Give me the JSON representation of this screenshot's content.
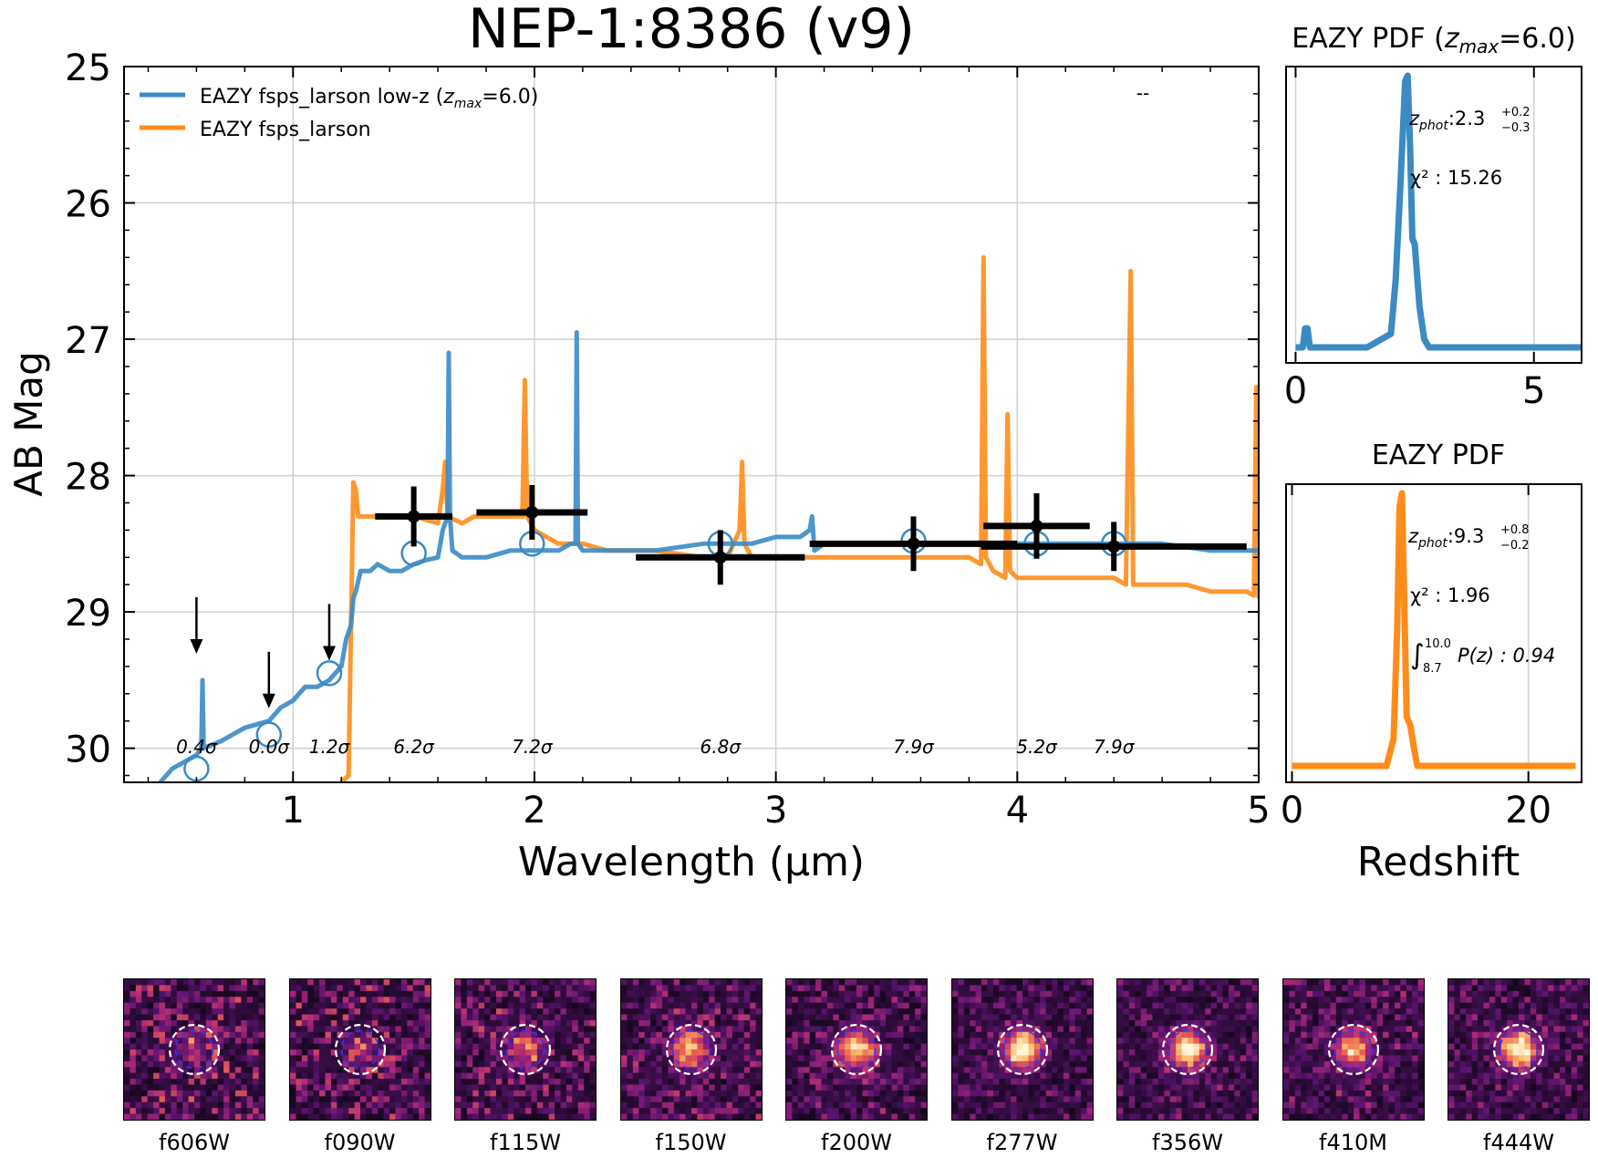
{
  "colors": {
    "low_z": "#3a8ac4",
    "free": "#ff8c1a",
    "data": "#000000",
    "grid": "#d0d0d0",
    "cutout_bg": "#16051e"
  },
  "main": {
    "title": "NEP-1:8386 (v9)",
    "xlabel": "Wavelength (µm)",
    "ylabel": "AB Mag",
    "xticks": [
      "1",
      "2",
      "3",
      "4",
      "5"
    ],
    "yticks": [
      "25",
      "26",
      "27",
      "28",
      "29",
      "30"
    ],
    "legend": {
      "low_z_prefix": "EAZY fsps_larson low-z (",
      "low_z_z": "z",
      "low_z_sub": "max",
      "low_z_suffix": "=6.0)",
      "free": "EAZY fsps_larson"
    },
    "top_right_mark": "--"
  },
  "pdf_lowz": {
    "title_prefix": "EAZY PDF (",
    "title_z": "z",
    "title_sub": "max",
    "title_suffix": "=6.0)",
    "xticks": [
      "0",
      "5"
    ],
    "zphot_label": "z",
    "zphot_sub": "phot",
    "zphot_value": ":2.3",
    "zphot_sup": "+0.2",
    "zphot_inf": "−0.3",
    "chi2_text": "χ² : 15.26"
  },
  "pdf_free": {
    "title": "EAZY PDF",
    "xticks": [
      "0",
      "20"
    ],
    "xlabel": "Redshift",
    "zphot_label": "z",
    "zphot_sub": "phot",
    "zphot_value": ":9.3",
    "zphot_sup": "+0.8",
    "zphot_inf": "−0.2",
    "chi2_text": "χ² : 1.96",
    "integral_sign": "∫",
    "integral_upper": "10.0",
    "integral_lower": "8.7",
    "integral_text": "P(z) : 0.94"
  },
  "chart_data": [
    {
      "type": "scatter",
      "title": "NEP-1:8386 (v9)",
      "xlabel": "Wavelength (µm)",
      "ylabel": "AB Mag",
      "xlim": [
        0.3,
        5.0
      ],
      "ylim": [
        30.25,
        25.0
      ],
      "grid": true,
      "legend_position": "top-left",
      "observed": [
        {
          "filter": "f606W",
          "x": 0.6,
          "mag": null,
          "upper_limit": 29.2,
          "snr": "0.4σ"
        },
        {
          "filter": "f090W",
          "x": 0.9,
          "mag": null,
          "upper_limit": 29.6,
          "snr": "0.0σ"
        },
        {
          "filter": "f115W",
          "x": 1.15,
          "mag": null,
          "upper_limit": 29.25,
          "snr": "1.2σ"
        },
        {
          "filter": "f150W",
          "x": 1.5,
          "xerr": 0.16,
          "mag": 28.3,
          "err": 0.1,
          "snr": "6.2σ"
        },
        {
          "filter": "f200W",
          "x": 1.99,
          "xerr": 0.23,
          "mag": 28.27,
          "err": 0.08,
          "snr": "7.2σ"
        },
        {
          "filter": "f277W",
          "x": 2.77,
          "xerr": 0.35,
          "mag": 28.6,
          "err": 0.08,
          "snr": "6.8σ"
        },
        {
          "filter": "f356W",
          "x": 3.57,
          "xerr": 0.43,
          "mag": 28.5,
          "err": 0.08,
          "snr": "7.9σ"
        },
        {
          "filter": "f410M",
          "x": 4.08,
          "xerr": 0.22,
          "mag": 28.37,
          "err": 0.12,
          "snr": "5.2σ"
        },
        {
          "filter": "f444W",
          "x": 4.4,
          "xerr": 0.55,
          "mag": 28.52,
          "err": 0.06,
          "snr": "7.9σ"
        }
      ],
      "model_photometry_low_z": [
        {
          "x": 0.6,
          "mag": 30.15
        },
        {
          "x": 0.9,
          "mag": 29.9
        },
        {
          "x": 1.15,
          "mag": 29.45
        },
        {
          "x": 1.5,
          "mag": 28.57
        },
        {
          "x": 1.99,
          "mag": 28.5
        },
        {
          "x": 2.77,
          "mag": 28.5
        },
        {
          "x": 3.57,
          "mag": 28.48
        },
        {
          "x": 4.08,
          "mag": 28.5
        },
        {
          "x": 4.4,
          "mag": 28.5
        }
      ],
      "series": [
        {
          "name": "EAZY fsps_larson low-z (zmax=6.0)",
          "x": [
            0.45,
            0.5,
            0.55,
            0.6,
            0.62,
            0.625,
            0.63,
            0.7,
            0.8,
            0.9,
            0.95,
            1.0,
            1.05,
            1.1,
            1.15,
            1.2,
            1.22,
            1.24,
            1.25,
            1.26,
            1.28,
            1.3,
            1.32,
            1.35,
            1.4,
            1.45,
            1.5,
            1.55,
            1.6,
            1.62,
            1.64,
            1.645,
            1.65,
            1.66,
            1.7,
            1.8,
            1.9,
            2.0,
            2.1,
            2.15,
            2.17,
            2.175,
            2.18,
            2.2,
            2.3,
            2.5,
            2.7,
            2.9,
            3.0,
            3.1,
            3.14,
            3.15,
            3.16,
            3.2,
            3.4,
            3.6,
            3.8,
            4.0,
            4.2,
            4.4,
            4.6,
            4.8,
            5.0
          ],
          "y": [
            30.25,
            30.15,
            30.1,
            30.05,
            30.0,
            29.5,
            30.0,
            29.95,
            29.85,
            29.8,
            29.7,
            29.65,
            29.55,
            29.55,
            29.5,
            29.4,
            29.2,
            29.1,
            28.9,
            28.85,
            28.7,
            28.7,
            28.7,
            28.65,
            28.7,
            28.7,
            28.65,
            28.62,
            28.6,
            28.4,
            28.3,
            27.1,
            28.3,
            28.55,
            28.6,
            28.6,
            28.55,
            28.55,
            28.55,
            28.5,
            28.5,
            26.95,
            28.5,
            28.55,
            28.55,
            28.55,
            28.5,
            28.5,
            28.45,
            28.45,
            28.4,
            28.3,
            28.55,
            28.5,
            28.5,
            28.5,
            28.5,
            28.5,
            28.5,
            28.5,
            28.5,
            28.55,
            28.55
          ]
        },
        {
          "name": "EAZY fsps_larson",
          "x": [
            1.2,
            1.23,
            1.25,
            1.26,
            1.27,
            1.3,
            1.4,
            1.5,
            1.6,
            1.62,
            1.63,
            1.64,
            1.7,
            1.75,
            1.8,
            1.9,
            1.95,
            1.96,
            1.97,
            2.0,
            2.05,
            2.1,
            2.2,
            2.3,
            2.5,
            2.7,
            2.8,
            2.85,
            2.86,
            2.87,
            2.9,
            3.0,
            3.1,
            3.15,
            3.2,
            3.4,
            3.6,
            3.7,
            3.8,
            3.85,
            3.86,
            3.87,
            3.9,
            3.95,
            3.96,
            3.97,
            4.0,
            4.1,
            4.2,
            4.3,
            4.4,
            4.45,
            4.47,
            4.48,
            4.5,
            4.6,
            4.7,
            4.8,
            4.9,
            4.95,
            4.98,
            4.99,
            5.0
          ],
          "y": [
            30.25,
            30.2,
            28.05,
            28.1,
            28.3,
            28.3,
            28.3,
            28.3,
            28.35,
            28.1,
            27.9,
            28.3,
            28.35,
            28.3,
            28.3,
            28.3,
            28.3,
            27.3,
            28.3,
            28.4,
            28.45,
            28.5,
            28.5,
            28.55,
            28.55,
            28.6,
            28.6,
            28.4,
            27.9,
            28.5,
            28.6,
            28.6,
            28.6,
            28.6,
            28.6,
            28.6,
            28.6,
            28.6,
            28.6,
            28.65,
            26.4,
            28.6,
            28.7,
            28.75,
            27.55,
            28.7,
            28.75,
            28.75,
            28.75,
            28.75,
            28.75,
            28.8,
            26.5,
            28.8,
            28.8,
            28.8,
            28.8,
            28.85,
            28.85,
            28.85,
            28.88,
            27.35,
            28.9
          ]
        }
      ]
    },
    {
      "type": "line",
      "title": "EAZY PDF (zmax=6.0)",
      "xlabel": "",
      "ylabel": "",
      "xlim": [
        -0.2,
        6.0
      ],
      "x": [
        0,
        0.15,
        0.2,
        0.25,
        0.3,
        0.4,
        1.5,
        2.0,
        2.1,
        2.2,
        2.3,
        2.35,
        2.4,
        2.45,
        2.5,
        2.6,
        2.7,
        2.8,
        3.0,
        4.0,
        6.0
      ],
      "y": [
        0.0,
        0.0,
        0.07,
        0.07,
        0.0,
        0.0,
        0.0,
        0.05,
        0.25,
        0.6,
        0.98,
        1.0,
        0.75,
        0.4,
        0.38,
        0.15,
        0.03,
        0.0,
        0.0,
        0.0,
        0.0
      ],
      "zphot": 2.3,
      "zphot_err_plus": 0.2,
      "zphot_err_minus": 0.3,
      "chi2": 15.26
    },
    {
      "type": "line",
      "title": "EAZY PDF",
      "xlabel": "Redshift",
      "ylabel": "",
      "xlim": [
        -0.5,
        24.5
      ],
      "x": [
        0,
        8.0,
        8.6,
        8.9,
        9.1,
        9.3,
        9.5,
        9.7,
        10.0,
        10.3,
        10.6,
        11.0,
        12.0,
        24.0
      ],
      "y": [
        0.0,
        0.0,
        0.1,
        0.5,
        0.95,
        1.0,
        0.6,
        0.18,
        0.15,
        0.07,
        0.0,
        0.0,
        0.0,
        0.0
      ],
      "zphot": 9.3,
      "zphot_err_plus": 0.8,
      "zphot_err_minus": 0.2,
      "chi2": 1.96,
      "integral_range": [
        8.7,
        10.0
      ],
      "integral_value": 0.94
    }
  ],
  "cutouts": [
    {
      "filter": "f606W",
      "brightness": 0.22,
      "seed": 3
    },
    {
      "filter": "f090W",
      "brightness": 0.25,
      "seed": 7
    },
    {
      "filter": "f115W",
      "brightness": 0.4,
      "seed": 11
    },
    {
      "filter": "f150W",
      "brightness": 0.6,
      "seed": 13
    },
    {
      "filter": "f200W",
      "brightness": 0.8,
      "seed": 17
    },
    {
      "filter": "f277W",
      "brightness": 1.0,
      "seed": 19
    },
    {
      "filter": "f356W",
      "brightness": 0.95,
      "seed": 23
    },
    {
      "filter": "f410M",
      "brightness": 0.7,
      "seed": 29
    },
    {
      "filter": "f444W",
      "brightness": 0.9,
      "seed": 31
    }
  ]
}
